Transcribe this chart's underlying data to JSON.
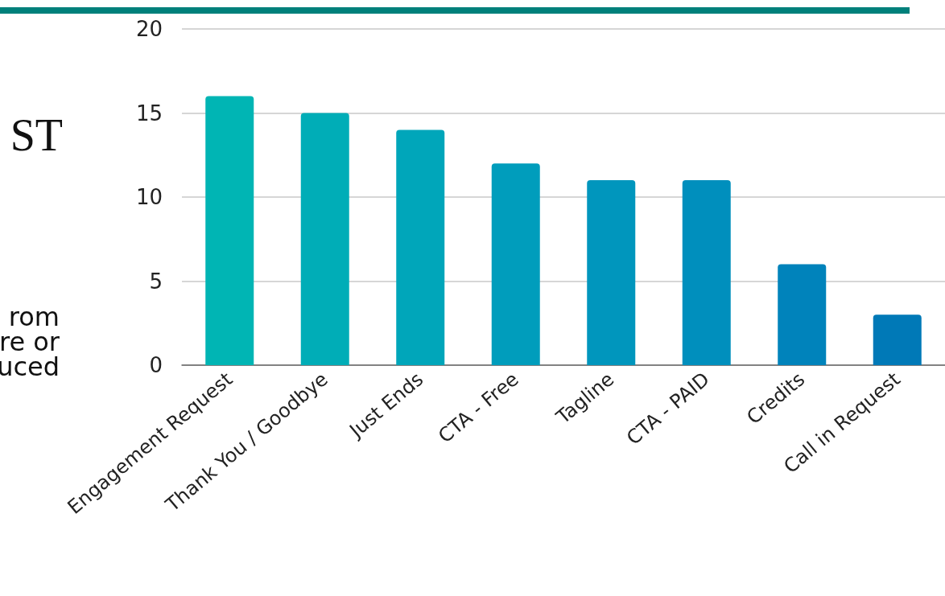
{
  "chart_data": {
    "type": "bar",
    "categories": [
      "Engagement Request",
      "Thank You / Goodbye",
      "Just Ends",
      "CTA - Free",
      "Tagline",
      "CTA - PAID",
      "Credits",
      "Call in Request"
    ],
    "values": [
      16,
      15,
      14,
      12,
      11,
      11,
      6,
      3
    ],
    "colors": [
      "#00b5b4",
      "#00adb7",
      "#00a6ba",
      "#009dbc",
      "#0096bd",
      "#008fbd",
      "#0083bb",
      "#0079b7"
    ],
    "ylim": [
      0,
      20
    ],
    "yticks": [
      0,
      5,
      10,
      15,
      20
    ],
    "grid": "y",
    "annotations": [
      "ST",
      "rom",
      "re or",
      "uced"
    ]
  }
}
